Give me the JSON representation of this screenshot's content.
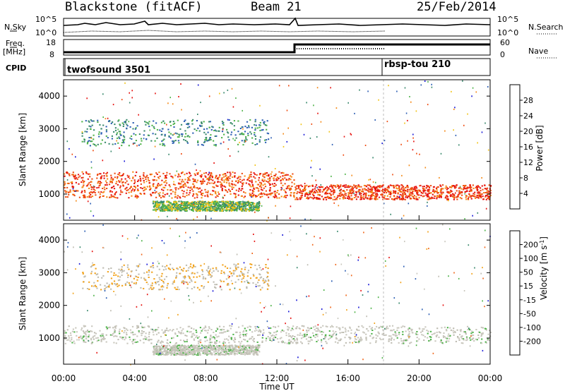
{
  "header": {
    "station": "Blackstone (fitACF)",
    "beam": "Beam 21",
    "date": "25/Feb/2014"
  },
  "noise_panel": {
    "left_label": "N.Sky",
    "right_label": "N.Search",
    "tick_top": "10^5",
    "tick_bottom": "10^0"
  },
  "freq_panel": {
    "left_label_1": "Freq.",
    "left_label_2": "[MHz]",
    "right_label": "Nave",
    "left_ticks": [
      "18",
      "8"
    ],
    "right_ticks": [
      "60",
      "0"
    ]
  },
  "cpid": {
    "label": "CPID",
    "programs": [
      {
        "name": "twofsound 3501",
        "start_hour": 0
      },
      {
        "name": "rbsp-tou 210",
        "start_hour": 18
      }
    ]
  },
  "time_axis": {
    "label": "Time UT",
    "ticks": [
      "00:00",
      "04:00",
      "08:00",
      "12:00",
      "16:00",
      "20:00",
      "00:00"
    ],
    "range_hours": [
      0,
      24
    ]
  },
  "colors": {
    "power": [
      "#1c1cd8",
      "#2d5fb4",
      "#3b8a6e",
      "#4fb34a",
      "#f2c41a",
      "#f58a18",
      "#ef4d12",
      "#e6120f"
    ],
    "velocity": [
      "#1c1cd8",
      "#2d5fb4",
      "#3b8a6e",
      "#4fb34a",
      "#c9c7bd",
      "#bdbbb0",
      "#f2a21a",
      "#f0661a",
      "#e6120f"
    ]
  },
  "chart_data": [
    {
      "type": "heatmap",
      "panel": "power",
      "ylabel": "Slant Range [km]",
      "yticks": [
        "1000",
        "2000",
        "3000",
        "4000"
      ],
      "ylim": [
        200,
        4500
      ],
      "colorbar": {
        "label": "Power [dB]",
        "ticks": [
          "4",
          "8",
          "12",
          "16",
          "20",
          "24",
          "28"
        ],
        "range": [
          0,
          32
        ]
      },
      "features": [
        {
          "name": "ground-scatter band",
          "x": [
            0,
            13
          ],
          "y": [
            900,
            1700
          ],
          "value": 26
        },
        {
          "name": "ground-scatter band",
          "x": [
            13,
            24
          ],
          "y": [
            850,
            1300
          ],
          "value": 27
        },
        {
          "name": "near-range echoes",
          "x": [
            5,
            11
          ],
          "y": [
            500,
            800
          ],
          "value": 14
        },
        {
          "name": "far-range echoes",
          "x": [
            1,
            11.5
          ],
          "y": [
            2500,
            3300
          ],
          "value": 10
        }
      ]
    },
    {
      "type": "heatmap",
      "panel": "velocity",
      "ylabel": "Slant Range [km]",
      "yticks": [
        "1000",
        "2000",
        "3000",
        "4000"
      ],
      "ylim": [
        200,
        4500
      ],
      "colorbar": {
        "label": "Velocity [m s^-1]",
        "ticks": [
          "200",
          "100",
          "50",
          "15",
          "-15",
          "-50",
          "-100",
          "-200"
        ],
        "range": [
          -250,
          250
        ]
      },
      "features": [
        {
          "name": "ground-scatter band",
          "x": [
            0,
            24
          ],
          "y": [
            850,
            1400
          ],
          "value": 0
        },
        {
          "name": "near-range echoes",
          "x": [
            5,
            11
          ],
          "y": [
            500,
            800
          ],
          "value": 0
        },
        {
          "name": "far-range echoes",
          "x": [
            1,
            11.5
          ],
          "y": [
            2500,
            3300
          ],
          "value": -80
        }
      ]
    }
  ]
}
